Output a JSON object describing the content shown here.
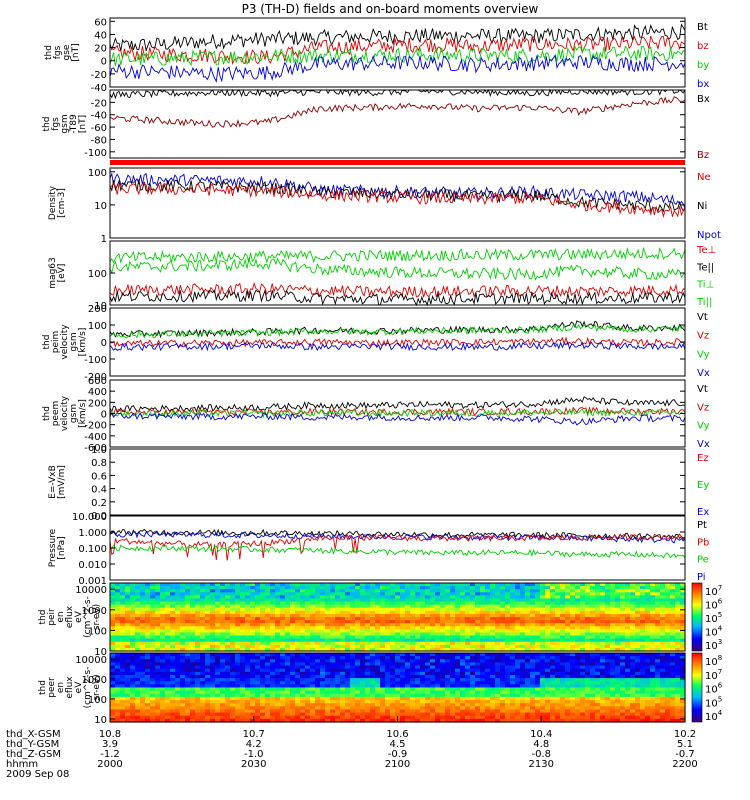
{
  "title": "P3 (TH-D) fields and on-board moments overview",
  "colors": {
    "black": "#000000",
    "red": "#e00000",
    "green": "#00d000",
    "blue": "#0000e0",
    "darkred": "#8b0000",
    "band": "#ff0000"
  },
  "chart_data": {
    "type": "line",
    "title": "P3 (TH-D) fields and on-board moments overview",
    "x": {
      "label_rows": [
        "thd_X-GSM",
        "thd_Y-GSM",
        "thd_Z-GSM",
        "hhmm"
      ],
      "date": "2009 Sep 08",
      "ticks": [
        {
          "x": "10.8",
          "y": "3.9",
          "z": "-1.2",
          "hhmm": "2000"
        },
        {
          "x": "10.7",
          "y": "4.2",
          "z": "-1.0",
          "hhmm": "2030"
        },
        {
          "x": "10.6",
          "y": "4.5",
          "z": "-0.9",
          "hhmm": "2100"
        },
        {
          "x": "10.4",
          "y": "4.8",
          "z": "-0.8",
          "hhmm": "2130"
        },
        {
          "x": "10.2",
          "y": "5.1",
          "z": "-0.7",
          "hhmm": "2200"
        }
      ],
      "range_hhmm": [
        "2000",
        "2200"
      ]
    },
    "panels": [
      {
        "id": "fgs",
        "ylabel": [
          "thd",
          "fgs",
          "gse",
          "[nT]"
        ],
        "scale": "linear",
        "ylim": [
          -40,
          65
        ],
        "yticks": [
          "60",
          "40",
          "20",
          "0",
          "-20",
          "-40"
        ],
        "legend": [
          {
            "name": "Bt",
            "color": "black"
          },
          {
            "name": "bz",
            "color": "red"
          },
          {
            "name": "by",
            "color": "green"
          },
          {
            "name": "bx",
            "color": "blue"
          }
        ]
      },
      {
        "id": "t89",
        "ylabel": [
          "thd",
          "fgs",
          "gsm",
          "-T89",
          "[nT]"
        ],
        "scale": "linear",
        "ylim": [
          -110,
          0
        ],
        "yticks": [
          "-20",
          "-40",
          "-60",
          "-80",
          "-100"
        ],
        "legend": [
          {
            "name": "Bx",
            "color": "black"
          },
          {
            "name": "Bz",
            "color": "darkred"
          }
        ]
      },
      {
        "id": "density",
        "ylabel": [
          "Density",
          "[cm-3]"
        ],
        "scale": "log",
        "ylim": [
          1,
          130
        ],
        "yticks": [
          "100",
          "10",
          "1"
        ],
        "legend": [
          {
            "name": "Ne",
            "color": "red"
          },
          {
            "name": "Ni",
            "color": "black"
          },
          {
            "name": "Npot",
            "color": "blue"
          }
        ]
      },
      {
        "id": "temp",
        "ylabel": [
          "mag63",
          "[eV]"
        ],
        "scale": "log",
        "ylim": [
          10,
          1000
        ],
        "yticks": [
          "100",
          "10"
        ],
        "legend": [
          {
            "name": "Te⊥",
            "color": "red"
          },
          {
            "name": "Te||",
            "color": "black"
          },
          {
            "name": "Ti⊥",
            "color": "green"
          },
          {
            "name": "Ti||",
            "color": "green"
          }
        ]
      },
      {
        "id": "peim",
        "ylabel": [
          "thd",
          "peim",
          "velocity",
          "gsm",
          "[km/s]"
        ],
        "scale": "linear",
        "ylim": [
          -200,
          200
        ],
        "yticks": [
          "200",
          "100",
          "0",
          "-100",
          "-200"
        ],
        "legend": [
          {
            "name": "Vt",
            "color": "black"
          },
          {
            "name": "Vz",
            "color": "red"
          },
          {
            "name": "Vy",
            "color": "green"
          },
          {
            "name": "Vx",
            "color": "blue"
          }
        ]
      },
      {
        "id": "peem",
        "ylabel": [
          "thd",
          "peem",
          "velocity",
          "gsm",
          "[km/s]"
        ],
        "scale": "linear",
        "ylim": [
          -600,
          600
        ],
        "yticks": [
          "600",
          "400",
          "200",
          "0",
          "-200",
          "-400",
          "-600"
        ],
        "legend": [
          {
            "name": "Vt",
            "color": "black"
          },
          {
            "name": "Vz",
            "color": "red"
          },
          {
            "name": "Vy",
            "color": "green"
          },
          {
            "name": "Vx",
            "color": "blue"
          }
        ]
      },
      {
        "id": "efield",
        "ylabel": [
          "E=-VxB",
          "[mV/m]"
        ],
        "scale": "linear",
        "ylim": [
          0,
          1.0
        ],
        "yticks": [
          "1.0",
          "0.8",
          "0.6",
          "0.4",
          "0.2",
          "0.0"
        ],
        "legend": [
          {
            "name": "Ez",
            "color": "red"
          },
          {
            "name": "Ey",
            "color": "green"
          },
          {
            "name": "Ex",
            "color": "blue"
          }
        ]
      },
      {
        "id": "pressure",
        "ylabel": [
          "Pressure",
          "[nPa]"
        ],
        "scale": "log",
        "ylim": [
          0.001,
          10
        ],
        "yticks": [
          "10.000",
          "1.000",
          "0.100",
          "0.010",
          "0.001"
        ],
        "legend": [
          {
            "name": "Pt",
            "color": "black"
          },
          {
            "name": "Pb",
            "color": "red"
          },
          {
            "name": "Pe",
            "color": "green"
          },
          {
            "name": "Pi",
            "color": "blue"
          }
        ]
      },
      {
        "id": "ions",
        "type": "heatmap",
        "ylabel": [
          "thd",
          "peir",
          "en",
          "eflux",
          "eV",
          "(cm^2-s-",
          "sr-eV)"
        ],
        "scale": "log",
        "ylim": [
          10,
          20000
        ],
        "yticks": [
          "10000",
          "1000",
          "100",
          "10"
        ],
        "colorbar": [
          "10^7",
          "10^6",
          "10^5",
          "10^4",
          "10^3"
        ]
      },
      {
        "id": "electrons",
        "type": "heatmap",
        "ylabel": [
          "thd",
          "peer",
          "en",
          "eflux",
          "eV",
          "(cm^2-s-",
          "sr-eV)"
        ],
        "scale": "log",
        "ylim": [
          7,
          20000
        ],
        "yticks": [
          "10000",
          "1000",
          "100",
          "10"
        ],
        "colorbar": [
          "10^8",
          "10^7",
          "10^6",
          "10^5",
          "10^4"
        ]
      }
    ],
    "series_approx": {
      "fgs": {
        "Bt": [
          22,
          25,
          30,
          33,
          35,
          37,
          38,
          38,
          37,
          40,
          42,
          44
        ],
        "bz": [
          12,
          10,
          8,
          5,
          20,
          22,
          25,
          22,
          25,
          24,
          26,
          28
        ],
        "by": [
          2,
          3,
          5,
          7,
          8,
          9,
          9,
          8,
          8,
          10,
          11,
          10
        ],
        "bx": [
          -15,
          -17,
          -20,
          -18,
          -5,
          -4,
          -3,
          -6,
          -4,
          -2,
          -5,
          -3
        ]
      },
      "t89": {
        "Bx": [
          -8,
          -6,
          -4,
          -5,
          -3,
          -4,
          -2,
          -3,
          -5,
          -2,
          -3,
          -1
        ],
        "Bz": [
          -45,
          -50,
          -55,
          -52,
          -30,
          -28,
          -25,
          -30,
          -28,
          -35,
          -22,
          -15
        ]
      },
      "density": {
        "Npot": [
          60,
          58,
          55,
          52,
          28,
          26,
          24,
          22,
          25,
          20,
          18,
          12
        ],
        "Ni": [
          40,
          38,
          36,
          33,
          24,
          22,
          20,
          18,
          20,
          12,
          10,
          8
        ],
        "Ne": [
          30,
          30,
          28,
          26,
          20,
          18,
          16,
          15,
          16,
          10,
          8,
          6
        ]
      },
      "temp": {
        "Ti⊥": [
          300,
          310,
          320,
          330,
          340,
          350,
          360,
          360,
          370,
          380,
          400,
          420
        ],
        "Ti||": [
          150,
          160,
          170,
          200,
          130,
          110,
          100,
          95,
          90,
          120,
          95,
          85
        ],
        "Te⊥": [
          28,
          30,
          30,
          32,
          28,
          26,
          26,
          27,
          28,
          27,
          28,
          30
        ],
        "Te||": [
          18,
          19,
          19,
          20,
          16,
          15,
          15,
          16,
          16,
          16,
          16,
          18
        ]
      },
      "peim": {
        "Vt": [
          45,
          50,
          55,
          60,
          70,
          65,
          70,
          72,
          75,
          110,
          80,
          85
        ],
        "Vz": [
          -10,
          -8,
          -5,
          -5,
          0,
          -5,
          -3,
          0,
          2,
          5,
          -5,
          0
        ],
        "Vy": [
          40,
          45,
          50,
          55,
          65,
          60,
          65,
          68,
          70,
          90,
          75,
          80
        ],
        "Vx": [
          -30,
          -28,
          -25,
          -20,
          -30,
          -25,
          -28,
          -30,
          -25,
          -20,
          -25,
          -30
        ]
      },
      "peem": {
        "Vt": [
          80,
          90,
          100,
          110,
          150,
          140,
          160,
          150,
          170,
          250,
          180,
          190
        ],
        "Vz": [
          20,
          20,
          25,
          20,
          30,
          25,
          30,
          30,
          35,
          50,
          40,
          40
        ],
        "Vy": [
          -10,
          -5,
          0,
          -5,
          10,
          5,
          10,
          5,
          10,
          20,
          10,
          15
        ],
        "Vx": [
          -40,
          -50,
          -60,
          -50,
          -70,
          -60,
          -80,
          -70,
          -90,
          -150,
          -80,
          -90
        ]
      },
      "pressure": {
        "Pt": [
          1.0,
          0.95,
          0.9,
          0.9,
          0.8,
          0.75,
          0.7,
          0.65,
          0.65,
          0.6,
          0.55,
          0.5
        ],
        "Pi": [
          0.7,
          0.7,
          0.65,
          0.6,
          0.55,
          0.5,
          0.5,
          0.45,
          0.45,
          0.4,
          0.35,
          0.3
        ],
        "Pb": [
          0.3,
          0.2,
          0.15,
          0.2,
          0.4,
          0.45,
          0.4,
          0.4,
          0.42,
          0.45,
          0.48,
          0.5
        ],
        "Pe": [
          0.1,
          0.1,
          0.09,
          0.08,
          0.07,
          0.06,
          0.05,
          0.05,
          0.05,
          0.04,
          0.04,
          0.03
        ]
      }
    }
  }
}
